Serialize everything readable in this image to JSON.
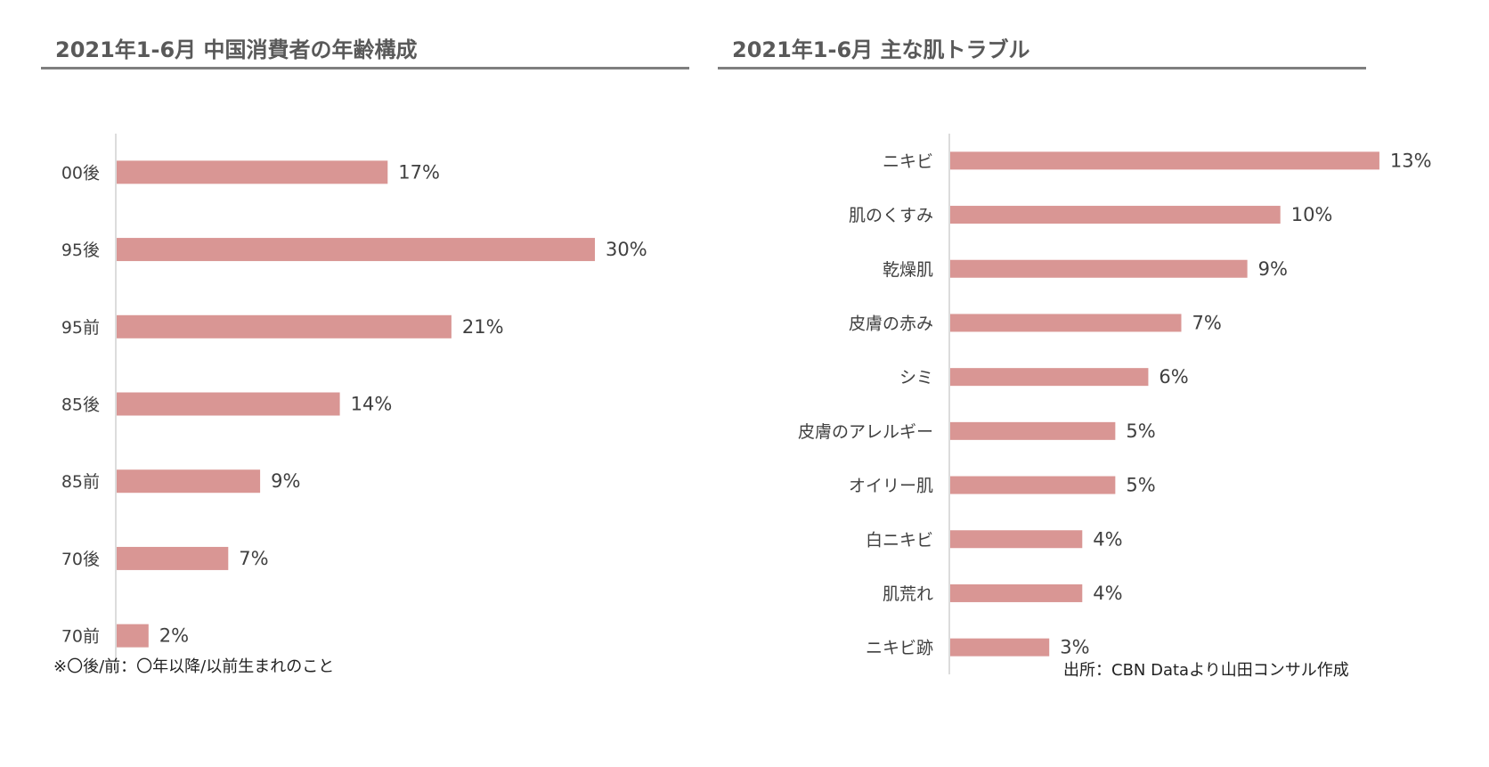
{
  "footnote_left": "※〇後/前：〇年以降/以前生まれのこと",
  "footnote_right": "出所：CBN Dataより山田コンサル作成",
  "bar_color": "#d99694",
  "chart_data": [
    {
      "type": "bar",
      "orientation": "horizontal",
      "title": "2021年1-6月 中国消費者の年齢構成",
      "categories": [
        "00後",
        "95後",
        "95前",
        "85後",
        "85前",
        "70後",
        "70前"
      ],
      "values": [
        17,
        30,
        21,
        14,
        9,
        7,
        2
      ],
      "value_labels": [
        "17%",
        "30%",
        "21%",
        "14%",
        "9%",
        "7%",
        "2%"
      ],
      "unit": "%",
      "xlim": [
        0,
        40
      ],
      "grid": false
    },
    {
      "type": "bar",
      "orientation": "horizontal",
      "title": "2021年1-6月 主な肌トラブル",
      "categories": [
        "ニキビ",
        "肌のくすみ",
        "乾燥肌",
        "皮膚の赤み",
        "シミ",
        "皮膚のアレルギー",
        "オイリー肌",
        "白ニキビ",
        "肌荒れ",
        "ニキビ跡"
      ],
      "values": [
        13,
        10,
        9,
        7,
        6,
        5,
        5,
        4,
        4,
        3
      ],
      "value_labels": [
        "13%",
        "10%",
        "9%",
        "7%",
        "6%",
        "5%",
        "5%",
        "4%",
        "4%",
        "3%"
      ],
      "unit": "%",
      "xlim": [
        0,
        14
      ],
      "grid": false
    }
  ]
}
